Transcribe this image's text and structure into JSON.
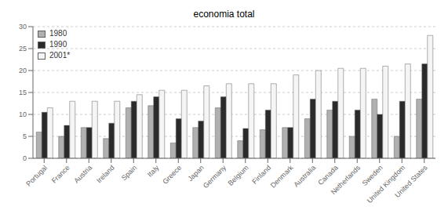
{
  "chart_data": {
    "type": "bar",
    "title": "economia total",
    "categories": [
      "Portugal",
      "France",
      "Austria",
      "Ireland",
      "Spain",
      "Italy",
      "Greece",
      "Japan",
      "Germany",
      "Belgium",
      "Finland",
      "Denmark",
      "Australia",
      "Canada",
      "Netherlands",
      "Sweden",
      "United Kingdom",
      "United States"
    ],
    "series": [
      {
        "name": "1980",
        "color": "#b0b0b0",
        "values": [
          6,
          5,
          7,
          4.5,
          11.5,
          12,
          3.5,
          7,
          11.5,
          4,
          6.5,
          7,
          9,
          11,
          5,
          13.5,
          5,
          13.5
        ]
      },
      {
        "name": "1990",
        "color": "#2a2a2a",
        "values": [
          10.5,
          7.5,
          7,
          8,
          13,
          14,
          9,
          8.5,
          14,
          6.8,
          11,
          7,
          13.5,
          13,
          11,
          10,
          13,
          21.5
        ]
      },
      {
        "name": "2001*",
        "color": "#f5f5f5",
        "values": [
          11.5,
          13,
          13,
          13,
          14.5,
          15.5,
          15.5,
          16.5,
          17,
          17,
          17,
          19,
          20,
          20.5,
          20.5,
          21,
          21.5,
          28
        ]
      }
    ],
    "ylim": [
      0,
      30
    ],
    "yticks": [
      0,
      5,
      10,
      15,
      20,
      25,
      30
    ],
    "grid": true,
    "legend": "upper left"
  }
}
